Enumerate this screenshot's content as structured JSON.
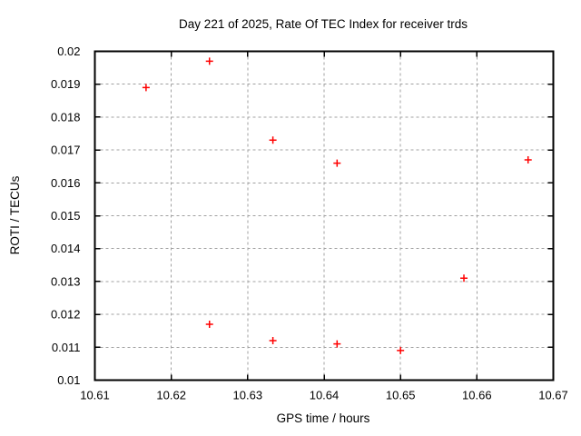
{
  "chart_data": {
    "type": "scatter",
    "title": "Day 221 of 2025, Rate Of TEC Index for receiver trds",
    "xlabel": "GPS time / hours",
    "ylabel": "ROTI / TECUs",
    "xlim": [
      10.61,
      10.67
    ],
    "ylim": [
      0.01,
      0.02
    ],
    "xticks": [
      10.61,
      10.62,
      10.63,
      10.64,
      10.65,
      10.66,
      10.67
    ],
    "xtick_labels": [
      "10.61",
      "10.62",
      "10.63",
      "10.64",
      "10.65",
      "10.66",
      "10.67"
    ],
    "yticks": [
      0.01,
      0.011,
      0.012,
      0.013,
      0.014,
      0.015,
      0.016,
      0.017,
      0.018,
      0.019,
      0.02
    ],
    "ytick_labels": [
      "0.01",
      "0.011",
      "0.012",
      "0.013",
      "0.014",
      "0.015",
      "0.016",
      "0.017",
      "0.018",
      "0.019",
      "0.02"
    ],
    "grid": true,
    "legend": "none",
    "marker": {
      "shape": "plus",
      "color": "#ff0000",
      "size": 8
    },
    "points": [
      [
        10.6167,
        0.0189
      ],
      [
        10.625,
        0.0197
      ],
      [
        10.6333,
        0.0173
      ],
      [
        10.6417,
        0.0166
      ],
      [
        10.6667,
        0.0167
      ],
      [
        10.625,
        0.0117
      ],
      [
        10.6333,
        0.0112
      ],
      [
        10.6417,
        0.0111
      ],
      [
        10.65,
        0.0109
      ],
      [
        10.6583,
        0.0131
      ]
    ],
    "colors": {
      "marker": "#ff0000",
      "grid": "#a0a0a0",
      "border": "#000000",
      "text": "#000000",
      "background": "#ffffff"
    }
  }
}
